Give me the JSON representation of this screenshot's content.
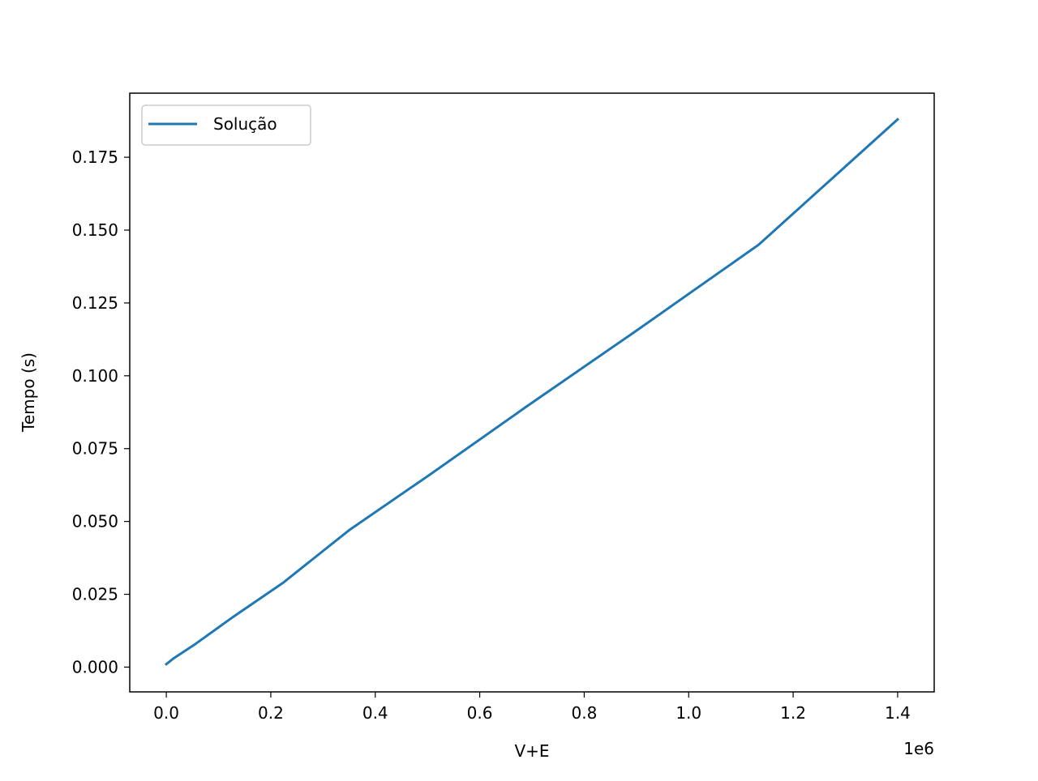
{
  "chart_data": {
    "type": "line",
    "xlabel": "V+E",
    "ylabel": "Tempo (s)",
    "x_offset_label": "1e6",
    "xlim": [
      -70000,
      1470000
    ],
    "ylim": [
      -0.0085,
      0.197
    ],
    "x_ticks": [
      0,
      200000,
      400000,
      600000,
      800000,
      1000000,
      1200000,
      1400000
    ],
    "x_tick_labels": [
      "0.0",
      "0.2",
      "0.4",
      "0.6",
      "0.8",
      "1.0",
      "1.2",
      "1.4"
    ],
    "y_ticks": [
      0,
      0.025,
      0.05,
      0.075,
      0.1,
      0.125,
      0.15,
      0.175
    ],
    "y_tick_labels": [
      "0.000",
      "0.025",
      "0.050",
      "0.075",
      "0.100",
      "0.125",
      "0.150",
      "0.175"
    ],
    "grid": false,
    "legend_position": "upper-left",
    "series": [
      {
        "name": "Solução",
        "color": "#1f77b4",
        "x": [
          0,
          14000,
          56000,
          126000,
          224000,
          350000,
          504000,
          686000,
          896000,
          1134000,
          1400000
        ],
        "y": [
          0.001,
          0.003,
          0.008,
          0.017,
          0.029,
          0.047,
          0.066,
          0.089,
          0.115,
          0.145,
          0.188
        ]
      }
    ]
  }
}
